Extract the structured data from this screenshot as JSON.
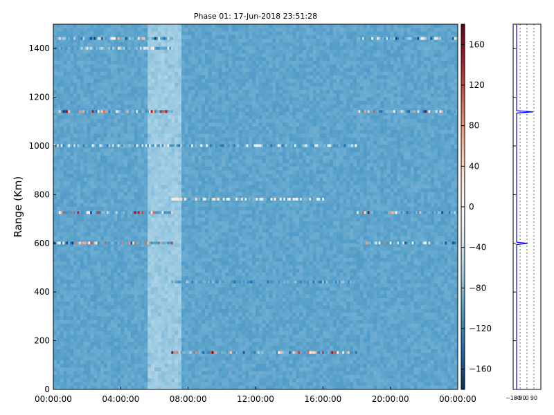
{
  "chart_data": [
    {
      "type": "heatmap",
      "title": "Phase 01: 17-Jun-2018 23:51:28",
      "xlabel": "",
      "ylabel": "Range (Km)",
      "x_tick_labels": [
        "00:00:00",
        "04:00:00",
        "08:00:00",
        "12:00:00",
        "16:00:00",
        "20:00:00",
        "00:00:00"
      ],
      "x_range": [
        "00:00:00",
        "24:00:00"
      ],
      "y_ticks": [
        0,
        200,
        400,
        600,
        800,
        1000,
        1200,
        1400
      ],
      "ylim": [
        0,
        1500
      ],
      "grid": false,
      "colormap": "RdBu_r",
      "background_value": -95,
      "colorbar": {
        "ticks": [
          160,
          120,
          80,
          40,
          0,
          -40,
          -80,
          -120,
          -160
        ],
        "range": [
          -180,
          180
        ]
      },
      "features": [
        {
          "range_km": 1440,
          "time_spans": [
            [
              "00:00:00",
              "07:00:00"
            ],
            [
              "18:00:00",
              "24:00:00"
            ]
          ],
          "values": "mixed -170 to 60"
        },
        {
          "range_km": 1400,
          "time_spans": [
            [
              "00:00:00",
              "07:00:00"
            ]
          ],
          "values": "mixed -120 to 20"
        },
        {
          "range_km": 1140,
          "time_spans": [
            [
              "00:00:00",
              "07:00:00"
            ],
            [
              "18:00:00",
              "24:00:00"
            ]
          ],
          "values": "mixed -170 to 170"
        },
        {
          "range_km": 1000,
          "time_spans": [
            [
              "00:00:00",
              "18:00:00"
            ]
          ],
          "values": "mixed -140 to 10"
        },
        {
          "range_km": 780,
          "time_spans": [
            [
              "07:00:00",
              "16:00:00"
            ]
          ],
          "values": "mixed -40 to 40"
        },
        {
          "range_km": 725,
          "time_spans": [
            [
              "00:00:00",
              "07:00:00"
            ],
            [
              "18:00:00",
              "24:00:00"
            ]
          ],
          "values": "mixed -170 to 170"
        },
        {
          "range_km": 600,
          "time_spans": [
            [
              "00:00:00",
              "07:00:00"
            ],
            [
              "18:00:00",
              "24:00:00"
            ]
          ],
          "values": "mixed -170 to 130"
        },
        {
          "range_km": 440,
          "time_spans": [
            [
              "07:00:00",
              "18:00:00"
            ]
          ],
          "values": "mixed -140 to -60"
        },
        {
          "range_km": 150,
          "time_spans": [
            [
              "07:00:00",
              "18:00:00"
            ]
          ],
          "values": "mixed -170 to 170"
        }
      ]
    },
    {
      "type": "line",
      "title": "",
      "xlabel": "",
      "ylabel": "",
      "x_tick_labels": [
        "−180",
        "−90",
        "0",
        "90"
      ],
      "xlim": [
        -180,
        180
      ],
      "ylim": [
        0,
        1500
      ],
      "grid": true,
      "series_color": "#0000ff",
      "points": [
        {
          "range_km": 0,
          "phase": -135
        },
        {
          "range_km": 595,
          "phase": -135
        },
        {
          "range_km": 600,
          "phase": 10
        },
        {
          "range_km": 605,
          "phase": -135
        },
        {
          "range_km": 1135,
          "phase": -135
        },
        {
          "range_km": 1140,
          "phase": 80
        },
        {
          "range_km": 1145,
          "phase": -135
        },
        {
          "range_km": 1500,
          "phase": -135
        }
      ]
    }
  ]
}
